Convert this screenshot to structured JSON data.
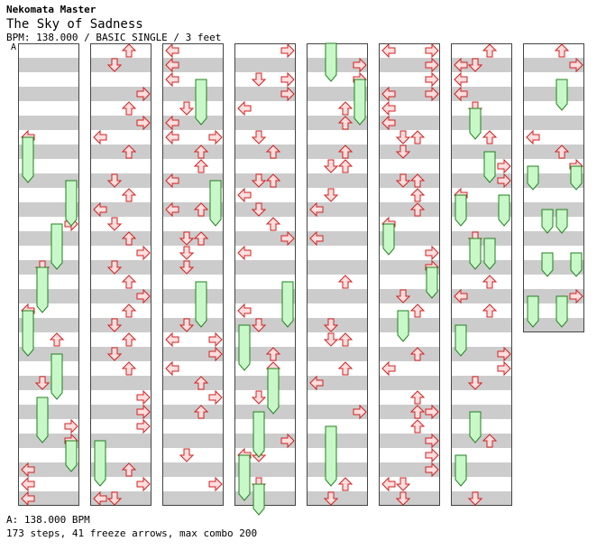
{
  "song": {
    "artist": "Nekomata Master",
    "title": "The Sky of Sadness",
    "info": "BPM: 138.000 / BASIC SINGLE / 3 feet",
    "marker": "A"
  },
  "footer": {
    "bpm_line": "A: 138.000 BPM",
    "stats": "173 steps, 41 freeze arrows, max combo 200"
  },
  "colors": {
    "arrow_fill": "#ffdede",
    "arrow_stroke": "#d02020",
    "freeze_fill": "#c8f8c8",
    "freeze_stroke": "#208020",
    "stripe": "#cccccc"
  },
  "chart_data": {
    "type": "step-chart",
    "columns": 8,
    "measures_per_column": 8,
    "lanes": [
      "left",
      "down",
      "up",
      "right"
    ],
    "steps": 173,
    "freeze_arrows": 41,
    "max_combo": 200,
    "bpm": 138.0
  }
}
